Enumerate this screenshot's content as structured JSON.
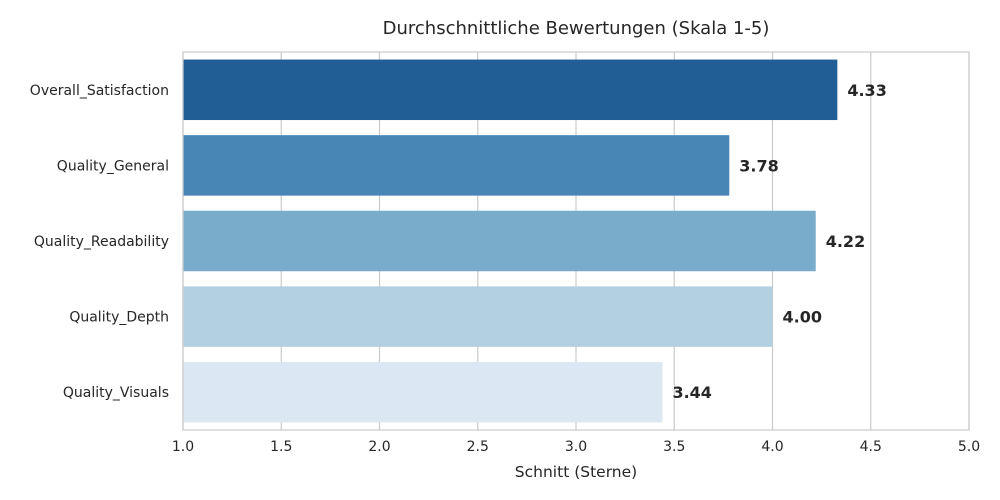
{
  "chart_data": {
    "type": "bar",
    "orientation": "horizontal",
    "title": "Durchschnittliche Bewertungen (Skala 1-5)",
    "xlabel": "Schnitt (Sterne)",
    "ylabel": "",
    "xlim": [
      1.0,
      5.0
    ],
    "xticks": [
      "1.0",
      "1.5",
      "2.0",
      "2.5",
      "3.0",
      "3.5",
      "4.0",
      "4.5",
      "5.0"
    ],
    "grid": true,
    "categories": [
      "Overall_Satisfaction",
      "Quality_General",
      "Quality_Readability",
      "Quality_Depth",
      "Quality_Visuals"
    ],
    "values": [
      4.33,
      3.78,
      4.22,
      4.0,
      3.44
    ],
    "value_labels": [
      "4.33",
      "3.78",
      "4.22",
      "4.00",
      "3.44"
    ],
    "colors": [
      "#225e96",
      "#4886b5",
      "#79abcb",
      "#b3d0e1",
      "#dbe8f4"
    ]
  }
}
